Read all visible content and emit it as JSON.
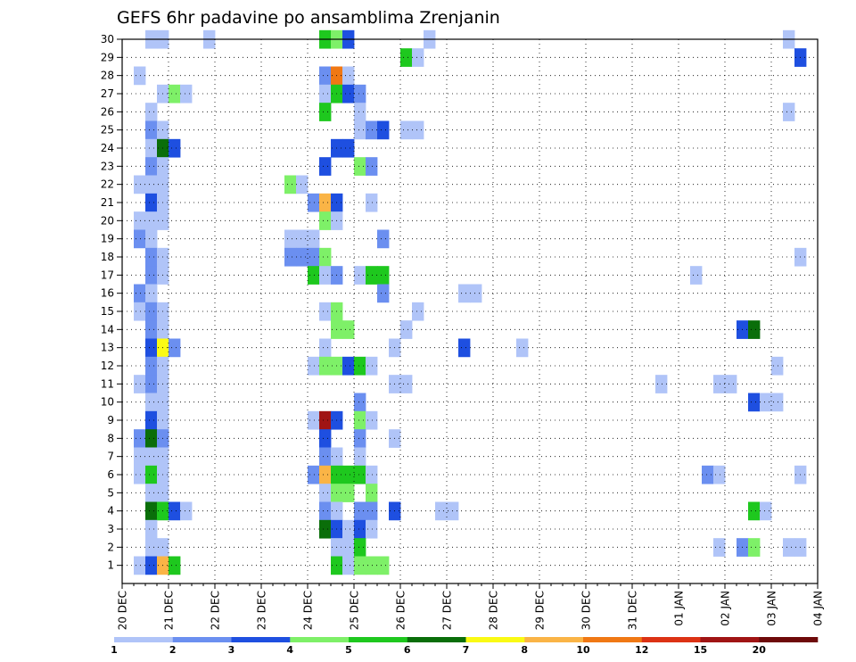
{
  "chart_data": {
    "type": "heatmap",
    "title": "GEFS 6hr padavine po ansamblima Zrenjanin",
    "xlabel": "",
    "ylabel": "",
    "x_tick_labels": [
      "20 DEC",
      "21 DEC",
      "22 DEC",
      "23 DEC",
      "24 DEC",
      "25 DEC",
      "26 DEC",
      "27 DEC",
      "28 DEC",
      "29 DEC",
      "30 DEC",
      "31 DEC",
      "01 JAN",
      "02 JAN",
      "03 JAN",
      "04 JAN"
    ],
    "x_range": [
      "20 DEC 00Z",
      "04 JAN 00Z"
    ],
    "time_step_hours": 6,
    "y_tick_labels": [
      1,
      2,
      3,
      4,
      5,
      6,
      7,
      8,
      9,
      10,
      11,
      12,
      13,
      14,
      15,
      16,
      17,
      18,
      19,
      20,
      21,
      22,
      23,
      24,
      25,
      26,
      27,
      28,
      29,
      30
    ],
    "y_range": [
      0,
      30
    ],
    "grid": "dotted",
    "colorbar": {
      "labels": [
        "1",
        "2",
        "3",
        "4",
        "5",
        "6",
        "7",
        "8",
        "10",
        "12",
        "15",
        "20"
      ],
      "colors": [
        "#b0c4f8",
        "#6b8ff0",
        "#1e4fe0",
        "#7ef068",
        "#1ec81e",
        "#0a6e0a",
        "#fafa14",
        "#fab446",
        "#f07814",
        "#dc3214",
        "#a01414",
        "#6e0a0a"
      ]
    },
    "cells_legend": "each cell = [x index in 6h steps from 20 DEC 00Z, ensemble member (0 = row below 1), colour class index into colorbar.colors]",
    "cells": [
      [
        2,
        30,
        0
      ],
      [
        3,
        30,
        0
      ],
      [
        7,
        30,
        0
      ],
      [
        17,
        30,
        4
      ],
      [
        18,
        30,
        3
      ],
      [
        19,
        30,
        2
      ],
      [
        26,
        30,
        0
      ],
      [
        57,
        30,
        0
      ],
      [
        58,
        29,
        2
      ],
      [
        24,
        29,
        4
      ],
      [
        25,
        29,
        0
      ],
      [
        1,
        28,
        0
      ],
      [
        17,
        28,
        1
      ],
      [
        18,
        28,
        8
      ],
      [
        19,
        28,
        0
      ],
      [
        3,
        27,
        0
      ],
      [
        4,
        27,
        3
      ],
      [
        5,
        27,
        0
      ],
      [
        17,
        27,
        0
      ],
      [
        18,
        27,
        4
      ],
      [
        19,
        27,
        2
      ],
      [
        20,
        27,
        1
      ],
      [
        2,
        26,
        0
      ],
      [
        17,
        26,
        4
      ],
      [
        20,
        26,
        0
      ],
      [
        57,
        26,
        0
      ],
      [
        2,
        25,
        1
      ],
      [
        3,
        25,
        0
      ],
      [
        20,
        25,
        0
      ],
      [
        21,
        25,
        1
      ],
      [
        22,
        25,
        2
      ],
      [
        24,
        25,
        0
      ],
      [
        25,
        25,
        0
      ],
      [
        2,
        24,
        0
      ],
      [
        3,
        24,
        5
      ],
      [
        4,
        24,
        2
      ],
      [
        18,
        24,
        2
      ],
      [
        19,
        24,
        2
      ],
      [
        2,
        23,
        1
      ],
      [
        3,
        23,
        0
      ],
      [
        17,
        23,
        2
      ],
      [
        20,
        23,
        3
      ],
      [
        21,
        23,
        1
      ],
      [
        1,
        22,
        0
      ],
      [
        2,
        22,
        0
      ],
      [
        3,
        22,
        0
      ],
      [
        14,
        22,
        3
      ],
      [
        15,
        22,
        0
      ],
      [
        2,
        21,
        2
      ],
      [
        3,
        21,
        0
      ],
      [
        16,
        21,
        1
      ],
      [
        17,
        21,
        7
      ],
      [
        18,
        21,
        2
      ],
      [
        21,
        21,
        0
      ],
      [
        1,
        20,
        0
      ],
      [
        2,
        20,
        0
      ],
      [
        3,
        20,
        0
      ],
      [
        17,
        20,
        3
      ],
      [
        18,
        20,
        0
      ],
      [
        1,
        19,
        1
      ],
      [
        2,
        19,
        0
      ],
      [
        14,
        19,
        0
      ],
      [
        15,
        19,
        0
      ],
      [
        16,
        19,
        0
      ],
      [
        22,
        19,
        1
      ],
      [
        2,
        18,
        1
      ],
      [
        3,
        18,
        0
      ],
      [
        14,
        18,
        1
      ],
      [
        15,
        18,
        1
      ],
      [
        16,
        18,
        1
      ],
      [
        17,
        18,
        3
      ],
      [
        58,
        18,
        0
      ],
      [
        2,
        17,
        1
      ],
      [
        3,
        17,
        0
      ],
      [
        16,
        17,
        4
      ],
      [
        17,
        17,
        0
      ],
      [
        18,
        17,
        1
      ],
      [
        20,
        17,
        0
      ],
      [
        21,
        17,
        4
      ],
      [
        22,
        17,
        4
      ],
      [
        49,
        17,
        0
      ],
      [
        1,
        16,
        1
      ],
      [
        2,
        16,
        0
      ],
      [
        22,
        16,
        1
      ],
      [
        29,
        16,
        0
      ],
      [
        30,
        16,
        0
      ],
      [
        1,
        15,
        0
      ],
      [
        2,
        15,
        1
      ],
      [
        3,
        15,
        0
      ],
      [
        17,
        15,
        0
      ],
      [
        18,
        15,
        3
      ],
      [
        25,
        15,
        0
      ],
      [
        2,
        14,
        1
      ],
      [
        3,
        14,
        0
      ],
      [
        18,
        14,
        3
      ],
      [
        19,
        14,
        3
      ],
      [
        24,
        14,
        0
      ],
      [
        53,
        14,
        2
      ],
      [
        54,
        14,
        5
      ],
      [
        2,
        13,
        2
      ],
      [
        3,
        13,
        6
      ],
      [
        4,
        13,
        1
      ],
      [
        17,
        13,
        0
      ],
      [
        23,
        13,
        0
      ],
      [
        29,
        13,
        2
      ],
      [
        34,
        13,
        0
      ],
      [
        2,
        12,
        1
      ],
      [
        3,
        12,
        0
      ],
      [
        16,
        12,
        0
      ],
      [
        17,
        12,
        3
      ],
      [
        18,
        12,
        3
      ],
      [
        19,
        12,
        2
      ],
      [
        20,
        12,
        4
      ],
      [
        21,
        12,
        0
      ],
      [
        56,
        12,
        0
      ],
      [
        1,
        11,
        0
      ],
      [
        2,
        11,
        1
      ],
      [
        3,
        11,
        0
      ],
      [
        23,
        11,
        0
      ],
      [
        24,
        11,
        0
      ],
      [
        46,
        11,
        0
      ],
      [
        51,
        11,
        0
      ],
      [
        52,
        11,
        0
      ],
      [
        2,
        10,
        0
      ],
      [
        3,
        10,
        0
      ],
      [
        20,
        10,
        1
      ],
      [
        54,
        10,
        2
      ],
      [
        55,
        10,
        0
      ],
      [
        56,
        10,
        0
      ],
      [
        2,
        9,
        2
      ],
      [
        3,
        9,
        0
      ],
      [
        16,
        9,
        0
      ],
      [
        17,
        9,
        10
      ],
      [
        18,
        9,
        2
      ],
      [
        20,
        9,
        3
      ],
      [
        21,
        9,
        0
      ],
      [
        1,
        8,
        1
      ],
      [
        2,
        8,
        5
      ],
      [
        3,
        8,
        1
      ],
      [
        17,
        8,
        2
      ],
      [
        20,
        8,
        1
      ],
      [
        23,
        8,
        0
      ],
      [
        1,
        7,
        0
      ],
      [
        2,
        7,
        0
      ],
      [
        3,
        7,
        0
      ],
      [
        17,
        7,
        1
      ],
      [
        18,
        7,
        0
      ],
      [
        20,
        7,
        0
      ],
      [
        1,
        6,
        0
      ],
      [
        2,
        6,
        4
      ],
      [
        3,
        6,
        0
      ],
      [
        16,
        6,
        1
      ],
      [
        17,
        6,
        7
      ],
      [
        18,
        6,
        4
      ],
      [
        19,
        6,
        4
      ],
      [
        20,
        6,
        4
      ],
      [
        21,
        6,
        0
      ],
      [
        50,
        6,
        1
      ],
      [
        51,
        6,
        0
      ],
      [
        58,
        6,
        0
      ],
      [
        2,
        5,
        0
      ],
      [
        3,
        5,
        0
      ],
      [
        17,
        5,
        0
      ],
      [
        18,
        5,
        3
      ],
      [
        19,
        5,
        3
      ],
      [
        21,
        5,
        3
      ],
      [
        2,
        4,
        5
      ],
      [
        3,
        4,
        4
      ],
      [
        4,
        4,
        2
      ],
      [
        5,
        4,
        0
      ],
      [
        17,
        4,
        1
      ],
      [
        18,
        4,
        0
      ],
      [
        20,
        4,
        1
      ],
      [
        21,
        4,
        1
      ],
      [
        23,
        4,
        2
      ],
      [
        27,
        4,
        0
      ],
      [
        28,
        4,
        0
      ],
      [
        54,
        4,
        4
      ],
      [
        55,
        4,
        0
      ],
      [
        2,
        3,
        0
      ],
      [
        17,
        3,
        5
      ],
      [
        18,
        3,
        2
      ],
      [
        19,
        3,
        0
      ],
      [
        20,
        3,
        2
      ],
      [
        21,
        3,
        0
      ],
      [
        2,
        2,
        0
      ],
      [
        3,
        2,
        0
      ],
      [
        18,
        2,
        0
      ],
      [
        19,
        2,
        0
      ],
      [
        20,
        2,
        4
      ],
      [
        51,
        2,
        0
      ],
      [
        53,
        2,
        1
      ],
      [
        54,
        2,
        3
      ],
      [
        57,
        2,
        0
      ],
      [
        58,
        2,
        0
      ],
      [
        1,
        1,
        0
      ],
      [
        2,
        1,
        2
      ],
      [
        3,
        1,
        7
      ],
      [
        4,
        1,
        4
      ],
      [
        18,
        1,
        4
      ],
      [
        19,
        1,
        0
      ],
      [
        20,
        1,
        3
      ],
      [
        21,
        1,
        3
      ],
      [
        22,
        1,
        3
      ]
    ]
  }
}
